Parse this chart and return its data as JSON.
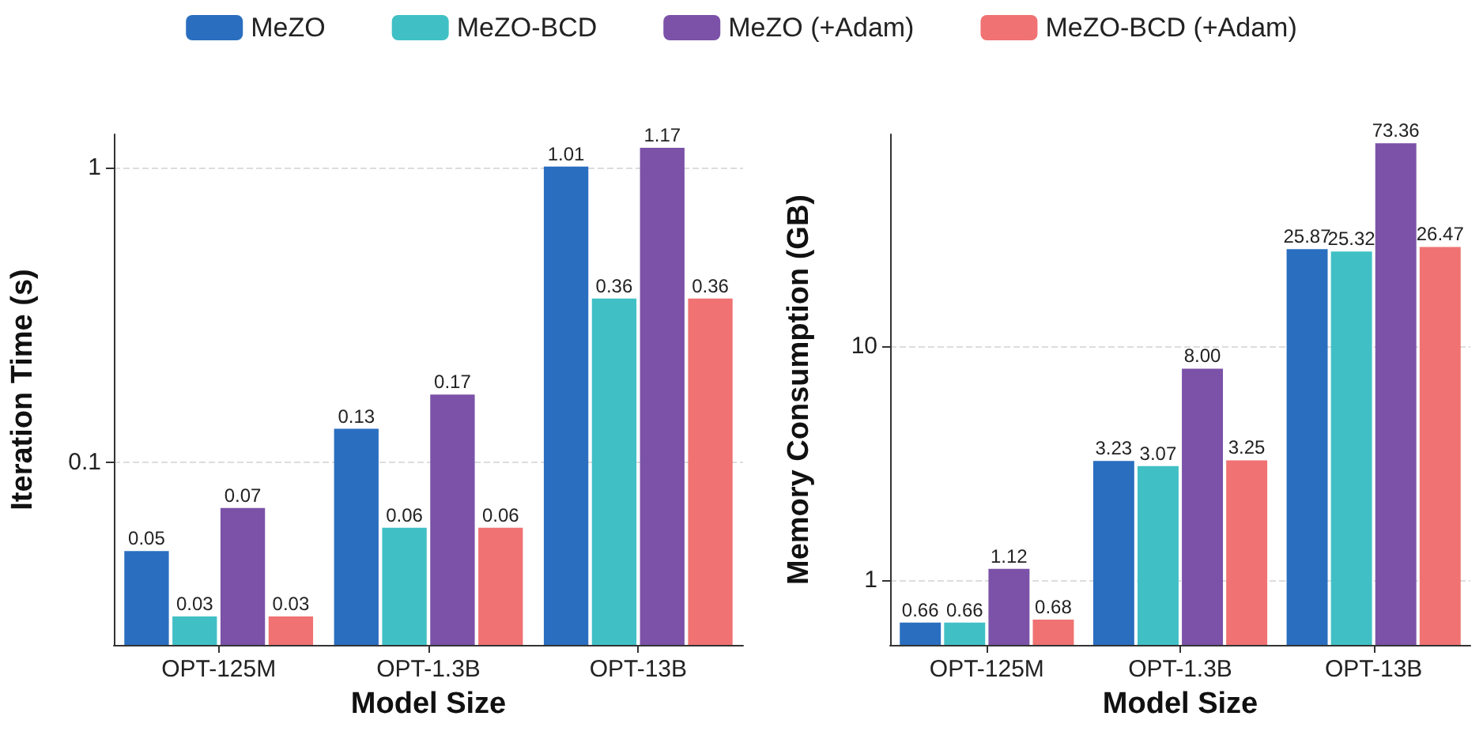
{
  "chart_data": [
    {
      "type": "bar",
      "xlabel": "Model Size",
      "ylabel": "Iteration Time (s)",
      "categories": [
        "OPT-125M",
        "OPT-1.3B",
        "OPT-13B"
      ],
      "log": "y",
      "ylim": [
        0.024,
        1.3
      ],
      "yticks": [
        0.1,
        1
      ],
      "grid": "y",
      "legend": "top",
      "data_labels": true,
      "series": [
        {
          "name": "MeZO",
          "color": "#2a6ebf",
          "values": [
            0.05,
            0.13,
            1.01
          ]
        },
        {
          "name": "MeZO-BCD",
          "color": "#40c0c5",
          "values": [
            0.03,
            0.06,
            0.36
          ]
        },
        {
          "name": "MeZO (+Adam)",
          "color": "#7b52a8",
          "values": [
            0.07,
            0.17,
            1.17
          ]
        },
        {
          "name": "MeZO-BCD (+Adam)",
          "color": "#f07272",
          "values": [
            0.03,
            0.06,
            0.36
          ]
        }
      ]
    },
    {
      "type": "bar",
      "xlabel": "Model Size",
      "ylabel": "Memory Consumption (GB)",
      "categories": [
        "OPT-125M",
        "OPT-1.3B",
        "OPT-13B"
      ],
      "log": "y",
      "ylim": [
        0.53,
        80
      ],
      "yticks": [
        1,
        10
      ],
      "grid": "y",
      "series": [
        {
          "color": "#2a6ebf",
          "values": [
            0.66,
            3.23,
            25.87
          ],
          "value_labels": [
            "0.66",
            "3.23",
            "25.87"
          ]
        },
        {
          "color": "#40c0c5",
          "values": [
            0.66,
            3.07,
            25.32
          ],
          "value_labels": [
            "0.66",
            "3.07",
            "25.32"
          ]
        },
        {
          "color": "#7b52a8",
          "values": [
            1.12,
            8.0,
            73.36
          ],
          "value_labels": [
            "1.12",
            "8.00",
            "73.36"
          ]
        },
        {
          "color": "#f07272",
          "values": [
            0.68,
            3.25,
            26.47
          ],
          "value_labels": [
            "0.68",
            "3.25",
            "26.47"
          ]
        }
      ]
    }
  ]
}
